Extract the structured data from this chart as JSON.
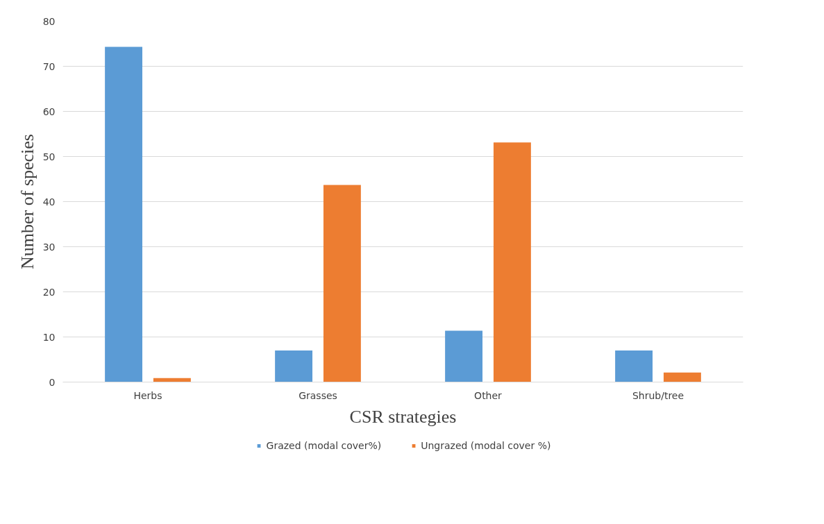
{
  "chart_data": {
    "type": "bar",
    "xlabel": "CSR strategies",
    "ylabel": "Number of species",
    "categories": [
      "Herbs",
      "Grasses",
      "Other",
      "Shrub/tree"
    ],
    "series": [
      {
        "name": "Grazed (modal cover%)",
        "color": "#5b9bd5",
        "values": [
          74.3,
          7,
          11.4,
          7
        ]
      },
      {
        "name": "Ungrazed (modal cover %)",
        "color": "#ed7d31",
        "values": [
          0.9,
          43.7,
          53.1,
          2.1
        ]
      }
    ],
    "ylim": [
      0,
      80
    ],
    "yticks": [
      0,
      10,
      20,
      30,
      40,
      50,
      60,
      70,
      80
    ],
    "grid": "y",
    "legend": "bottom"
  }
}
